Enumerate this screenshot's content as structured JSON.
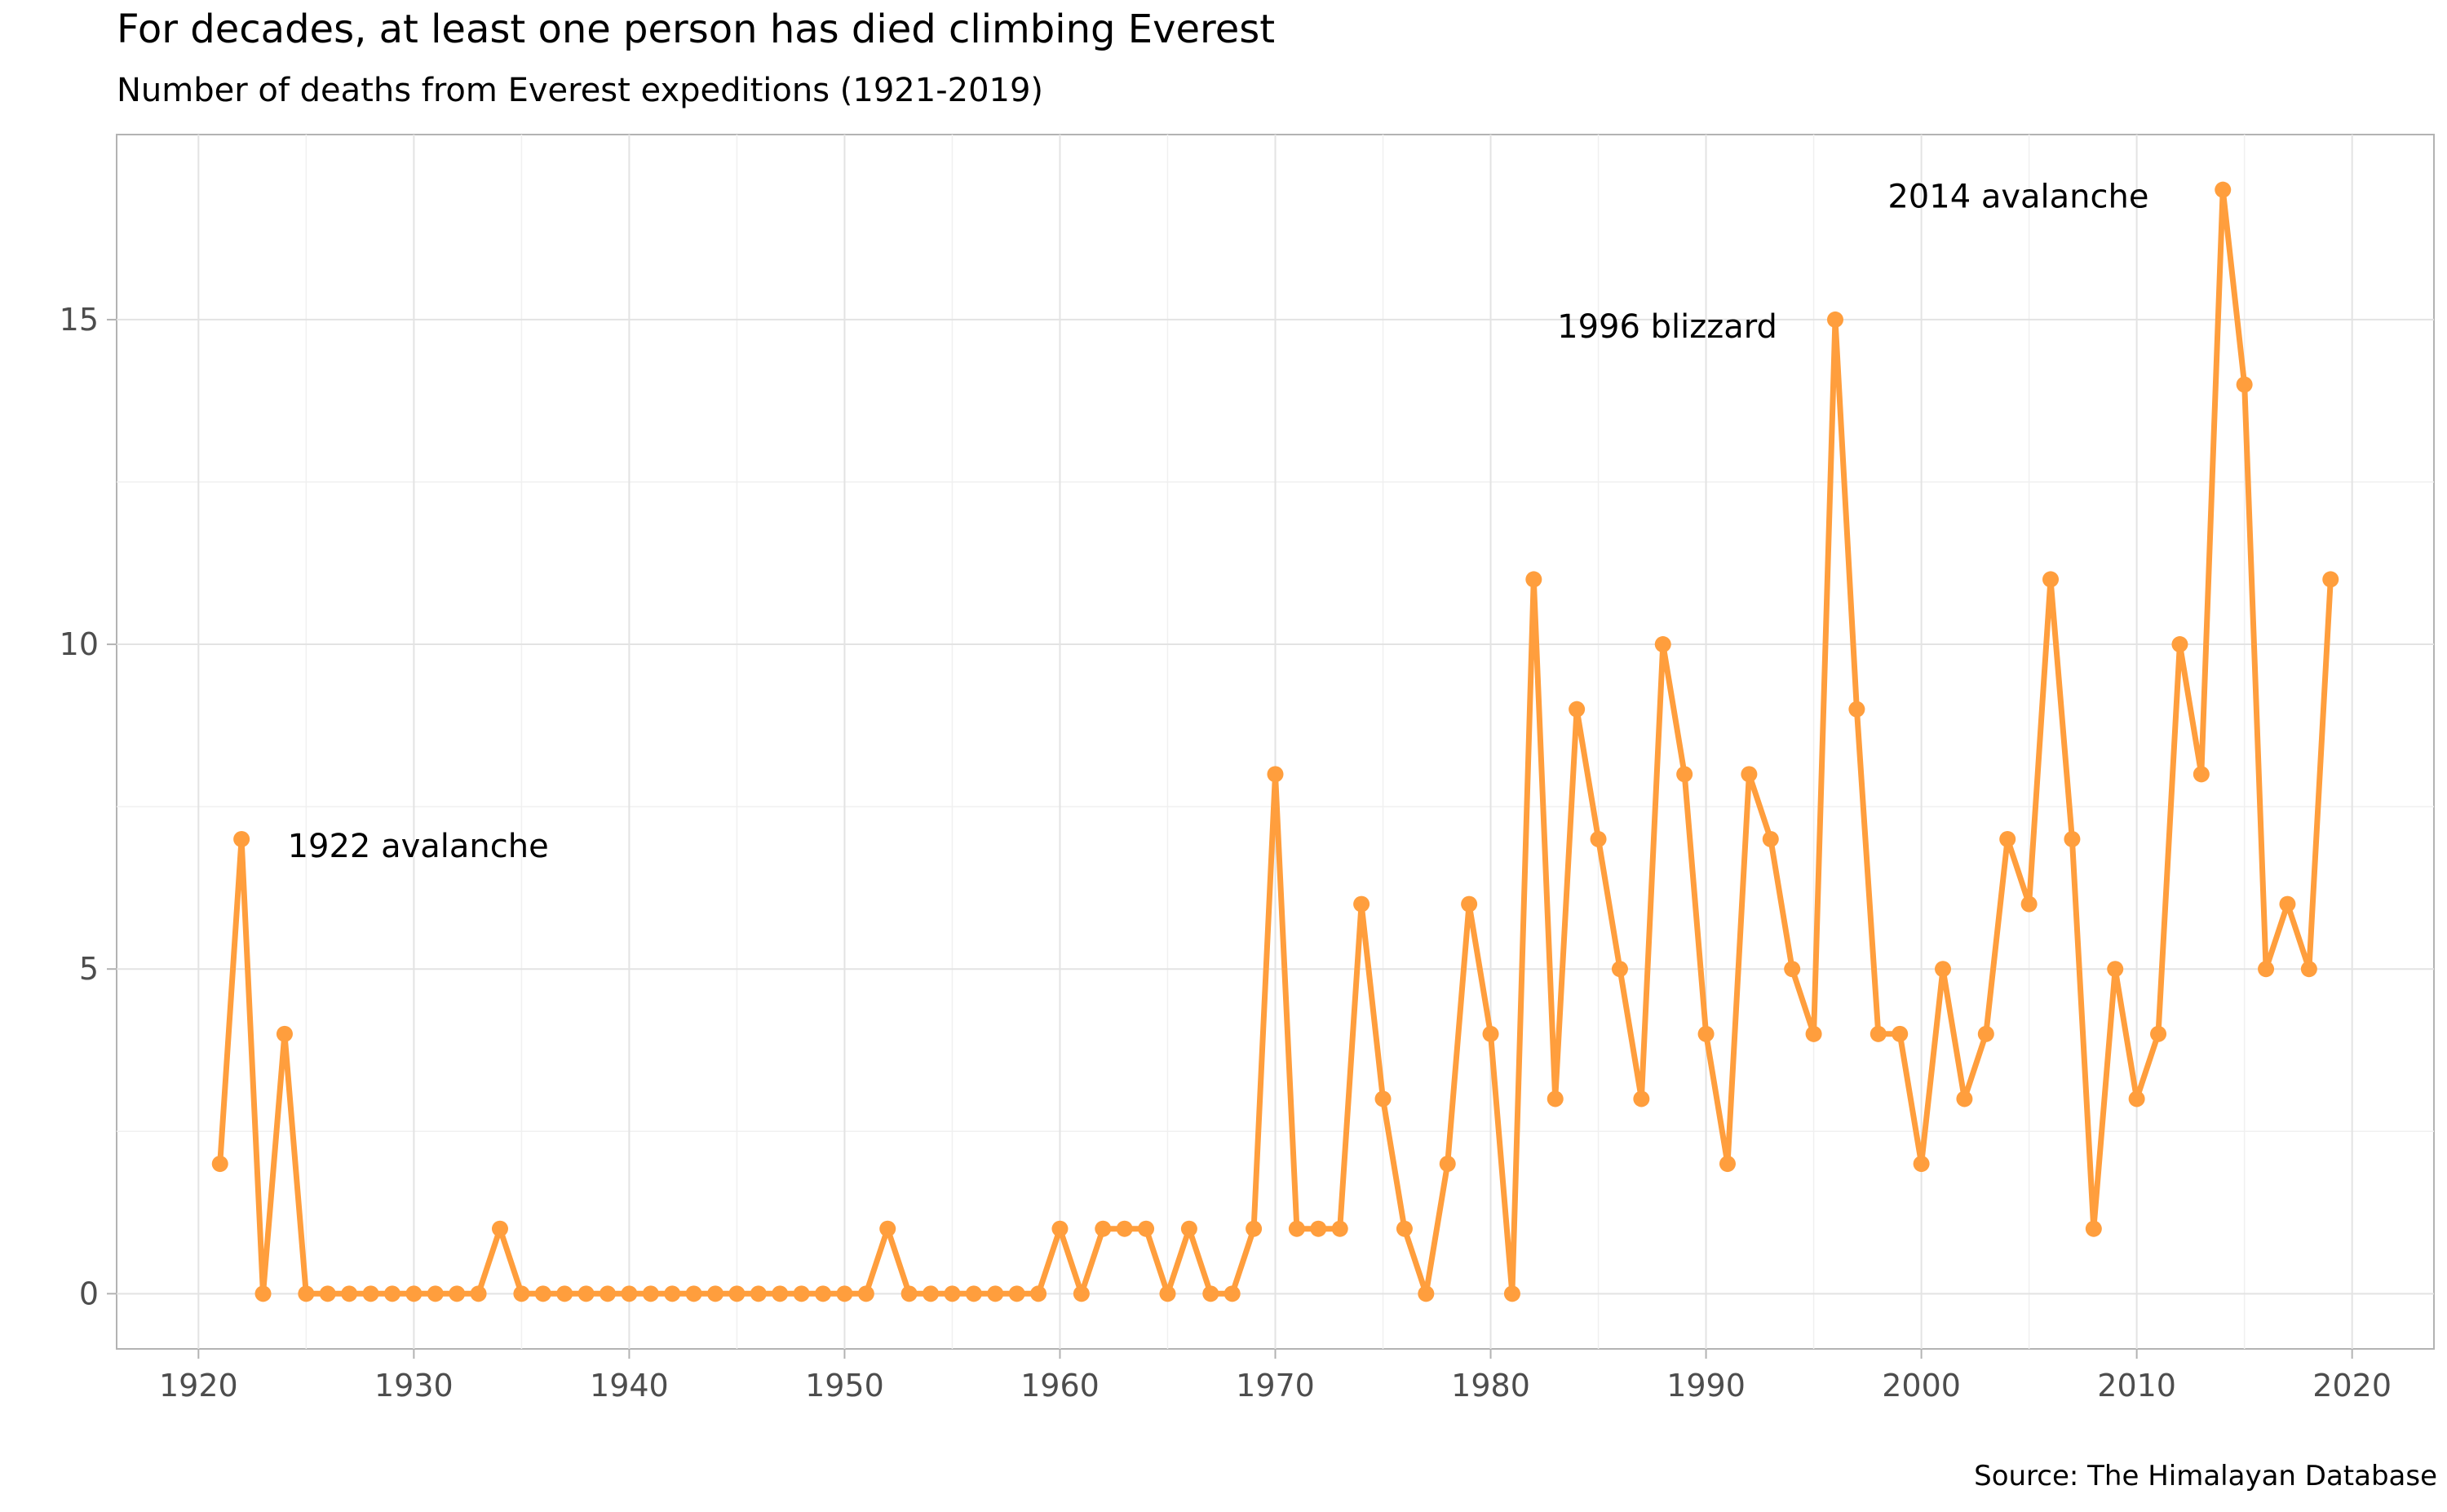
{
  "chart_data": {
    "type": "line",
    "title": "For decades, at least one person has died climbing Everest",
    "subtitle": "Number of deaths from Everest expeditions (1921-2019)",
    "caption": "Source: The Himalayan Database",
    "xlabel": "",
    "ylabel": "",
    "xlim": [
      1916.2,
      2023.8
    ],
    "ylim": [
      -0.85,
      17.85
    ],
    "xticks": [
      1920,
      1930,
      1940,
      1950,
      1960,
      1970,
      1980,
      1990,
      2000,
      2010,
      2020
    ],
    "yticks": [
      0,
      5,
      10,
      15
    ],
    "grid": true,
    "line_color": "#FF9E3D",
    "x": [
      1921,
      1922,
      1923,
      1924,
      1925,
      1926,
      1927,
      1928,
      1929,
      1930,
      1931,
      1932,
      1933,
      1934,
      1935,
      1936,
      1937,
      1938,
      1939,
      1940,
      1941,
      1942,
      1943,
      1944,
      1945,
      1946,
      1947,
      1948,
      1949,
      1950,
      1951,
      1952,
      1953,
      1954,
      1955,
      1956,
      1957,
      1958,
      1959,
      1960,
      1961,
      1962,
      1963,
      1964,
      1965,
      1966,
      1967,
      1968,
      1969,
      1970,
      1971,
      1972,
      1973,
      1974,
      1975,
      1976,
      1977,
      1978,
      1979,
      1980,
      1981,
      1982,
      1983,
      1984,
      1985,
      1986,
      1987,
      1988,
      1989,
      1990,
      1991,
      1992,
      1993,
      1994,
      1995,
      1996,
      1997,
      1998,
      1999,
      2000,
      2001,
      2002,
      2003,
      2004,
      2005,
      2006,
      2007,
      2008,
      2009,
      2010,
      2011,
      2012,
      2013,
      2014,
      2015,
      2016,
      2017,
      2018,
      2019
    ],
    "y": [
      2,
      7,
      0,
      4,
      0,
      0,
      0,
      0,
      0,
      0,
      0,
      0,
      0,
      1,
      0,
      0,
      0,
      0,
      0,
      0,
      0,
      0,
      0,
      0,
      0,
      0,
      0,
      0,
      0,
      0,
      0,
      1,
      0,
      0,
      0,
      0,
      0,
      0,
      0,
      1,
      0,
      1,
      1,
      1,
      0,
      1,
      0,
      0,
      1,
      8,
      1,
      1,
      1,
      6,
      3,
      1,
      0,
      2,
      6,
      4,
      0,
      11,
      3,
      9,
      7,
      5,
      3,
      10,
      8,
      4,
      2,
      8,
      7,
      5,
      4,
      15,
      9,
      4,
      4,
      2,
      5,
      3,
      4,
      7,
      6,
      11,
      7,
      1,
      5,
      3,
      4,
      10,
      8,
      17,
      14,
      5,
      6,
      5,
      11
    ],
    "annotations": [
      {
        "label": "1922 avalanche",
        "x": 1930.2,
        "y": 6.9
      },
      {
        "label": "1996 blizzard",
        "x": 1988.2,
        "y": 14.9
      },
      {
        "label": "2014 avalanche",
        "x": 2004.5,
        "y": 16.9
      }
    ]
  }
}
